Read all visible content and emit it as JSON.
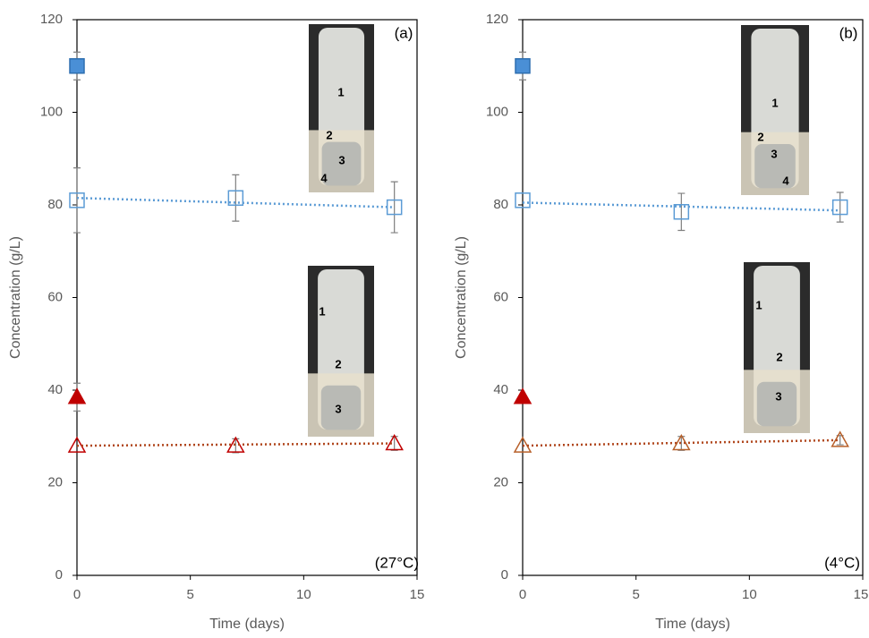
{
  "chart_data": [
    {
      "type": "scatter",
      "x_label": "Time (days)",
      "y_label": "Concentration (g/L)",
      "xlim": [
        0,
        15
      ],
      "ylim": [
        0,
        120
      ],
      "xticks": [
        0,
        5,
        10,
        15
      ],
      "yticks": [
        0,
        20,
        40,
        60,
        80,
        100,
        120
      ],
      "annotations": [
        "(a)",
        "(27°C)"
      ],
      "inset_labels": [
        [
          "1",
          "2",
          "3",
          "4"
        ],
        [
          "1",
          "2",
          "3"
        ]
      ],
      "series": [
        {
          "marker": "square",
          "filled": true,
          "color": "#4a8fd6",
          "x": [
            0
          ],
          "values": [
            110
          ],
          "errors": [
            3
          ]
        },
        {
          "marker": "square",
          "filled": false,
          "color": "#5b9bd5",
          "x": [
            0,
            7,
            14
          ],
          "values": [
            81,
            81.5,
            79.5
          ],
          "errors": [
            7,
            5,
            5.5
          ]
        },
        {
          "marker": "line",
          "color": "#5b9bd5",
          "x": [
            0,
            14
          ],
          "values": [
            81.5,
            79.5
          ]
        },
        {
          "marker": "triangle",
          "filled": true,
          "color": "#c00000",
          "x": [
            0
          ],
          "values": [
            38.5
          ],
          "errors": [
            3
          ]
        },
        {
          "marker": "triangle",
          "filled": false,
          "color": "#c00000",
          "x": [
            0,
            7,
            14
          ],
          "values": [
            28,
            28,
            28.5
          ],
          "errors": [
            0,
            1.5,
            1.5
          ]
        },
        {
          "marker": "line",
          "color": "#b0461c",
          "x": [
            0,
            14
          ],
          "values": [
            28,
            28.5
          ]
        }
      ]
    },
    {
      "type": "scatter",
      "x_label": "Time (days)",
      "y_label": "Concentration (g/L)",
      "xlim": [
        0,
        15
      ],
      "ylim": [
        0,
        120
      ],
      "xticks": [
        0,
        5,
        10,
        15
      ],
      "yticks": [
        0,
        20,
        40,
        60,
        80,
        100,
        120
      ],
      "annotations": [
        "(b)",
        "(4°C)"
      ],
      "inset_labels": [
        [
          "1",
          "2",
          "3",
          "4"
        ],
        [
          "1",
          "2",
          "3"
        ]
      ],
      "series": [
        {
          "marker": "square",
          "filled": true,
          "color": "#4a8fd6",
          "x": [
            0
          ],
          "values": [
            110
          ],
          "errors": [
            3
          ]
        },
        {
          "marker": "square",
          "filled": false,
          "color": "#5b9bd5",
          "x": [
            0,
            7,
            14
          ],
          "values": [
            81,
            78.5,
            79.5
          ],
          "errors": [
            0,
            4,
            3.2
          ]
        },
        {
          "marker": "line",
          "color": "#5b9bd5",
          "x": [
            0,
            14
          ],
          "values": [
            80.5,
            78.8
          ]
        },
        {
          "marker": "triangle",
          "filled": true,
          "color": "#c00000",
          "x": [
            0
          ],
          "values": [
            38.5
          ],
          "errors": [
            0
          ]
        },
        {
          "marker": "triangle",
          "filled": false,
          "color": "#b8602a",
          "x": [
            0,
            7,
            14
          ],
          "values": [
            28,
            28.5,
            29.2
          ],
          "errors": [
            0,
            1.5,
            1
          ]
        },
        {
          "marker": "line",
          "color": "#b0461c",
          "x": [
            0,
            14
          ],
          "values": [
            28,
            29.2
          ]
        }
      ]
    }
  ]
}
